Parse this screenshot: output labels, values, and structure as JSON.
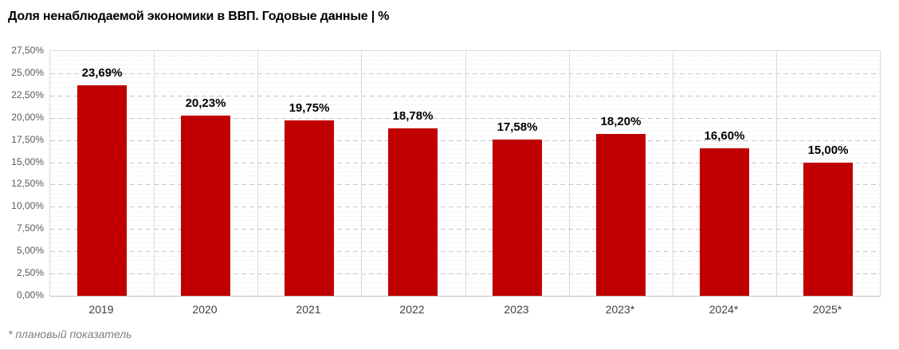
{
  "title": "Доля ненаблюдаемой экономики в ВВП. Годовые данные | %",
  "footnote": "* плановый показатель",
  "chart_data": {
    "type": "bar",
    "title": "Доля ненаблюдаемой экономики в ВВП. Годовые данные | %",
    "categories": [
      "2019",
      "2020",
      "2021",
      "2022",
      "2023",
      "2023*",
      "2024*",
      "2025*"
    ],
    "values": [
      23.69,
      20.23,
      19.75,
      18.78,
      17.58,
      18.2,
      16.6,
      15.0
    ],
    "value_labels": [
      "23,69%",
      "20,23%",
      "19,75%",
      "18,78%",
      "17,58%",
      "18,20%",
      "16,60%",
      "15,00%"
    ],
    "xlabel": "",
    "ylabel": "",
    "ylim": [
      0,
      27.5
    ],
    "ytick_step": 2.5,
    "minor_gridline_step": 0.5,
    "yticks": [
      {
        "value": 0,
        "label": "0,00%"
      },
      {
        "value": 2.5,
        "label": "2,50%"
      },
      {
        "value": 5,
        "label": "5,00%"
      },
      {
        "value": 7.5,
        "label": "7,50%"
      },
      {
        "value": 10,
        "label": "10,00%"
      },
      {
        "value": 12.5,
        "label": "12,50%"
      },
      {
        "value": 15,
        "label": "15,00%"
      },
      {
        "value": 17.5,
        "label": "17,50%"
      },
      {
        "value": 20,
        "label": "20,00%"
      },
      {
        "value": 22.5,
        "label": "22,50%"
      },
      {
        "value": 25,
        "label": "25,00%"
      },
      {
        "value": 27.5,
        "label": "27,50%"
      }
    ],
    "grid": true,
    "legend_position": "none",
    "bar_color": "#c00000",
    "annotation_note": "* плановый показатель"
  }
}
